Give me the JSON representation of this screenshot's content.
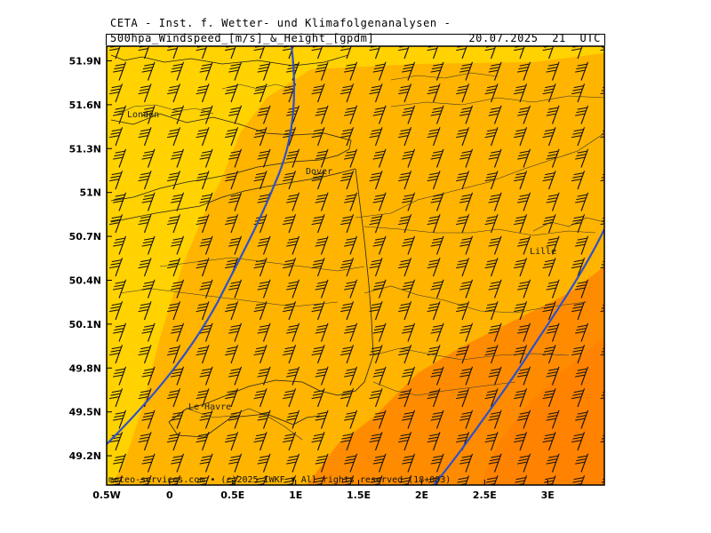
{
  "header": {
    "title": "CETA - Inst. f. Wetter- und Klimafolgenanalysen -",
    "subtitle": "500hpa_Windspeed_[m/s]_&_Height_[gpdm]",
    "datetime": "20.07.2025  21  UTC"
  },
  "footer": {
    "credit": "meteo-services.com • (c)2025 IWKF • All rights reserved (18+003)"
  },
  "axes": {
    "x_labels": [
      "0.5W",
      "0",
      "0.5E",
      "1E",
      "1.5E",
      "2E",
      "2.5E",
      "3E"
    ],
    "y_labels": [
      "51.9N",
      "51.6N",
      "51.3N",
      "51N",
      "50.7N",
      "50.4N",
      "50.1N",
      "49.8N",
      "49.5N",
      "49.2N"
    ],
    "lon_range": [
      -0.5,
      3.45
    ],
    "lat_range": [
      49.0,
      52.0
    ]
  },
  "places": {
    "london": "London",
    "dover": "Dover",
    "lille": "Lille",
    "le_havre": "Le Havre"
  },
  "colors": {
    "band_light": "#ffd200",
    "band_mid": "#ffb400",
    "band_dark": "#ff8c00",
    "contour": "#3050c8",
    "barb": "#111111",
    "borders": "#222222"
  },
  "wind": {
    "direction_from_deg": 225,
    "unit": "m/s"
  },
  "height_contours": {
    "count": 2
  }
}
